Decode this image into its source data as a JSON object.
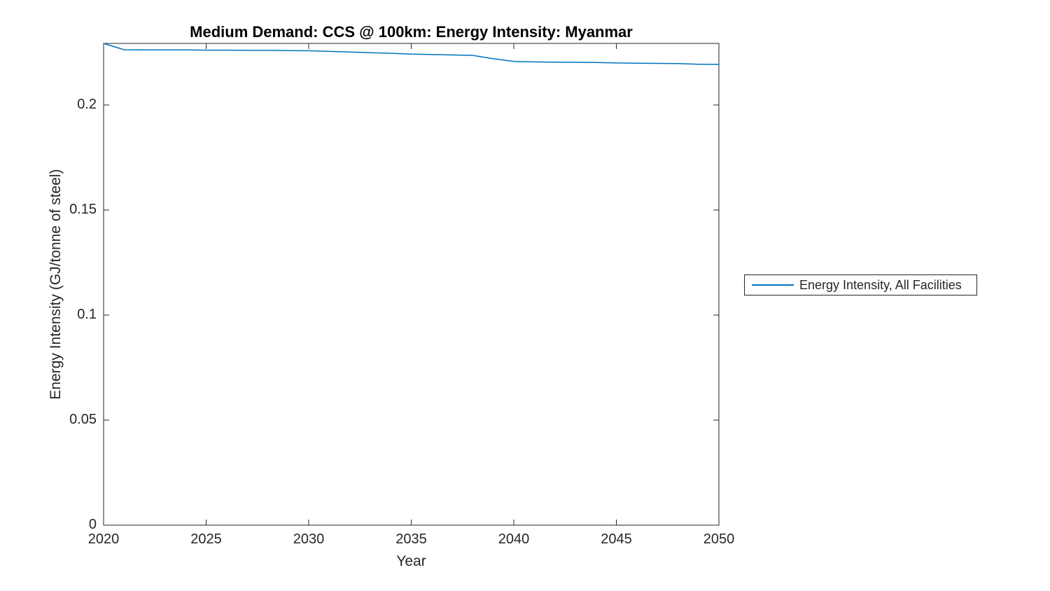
{
  "figure": {
    "background": "#ffffff"
  },
  "style": {
    "axis_color": "#262626",
    "title_color": "#000000",
    "line_color": "#0072BD"
  },
  "legend": {
    "label": "Energy Intensity, All Facilities"
  },
  "chart_data": {
    "type": "line",
    "title": "Medium Demand: CCS @ 100km: Energy Intensity: Myanmar",
    "xlabel": "Year",
    "ylabel": "Energy Intensity (GJ/tonne of steel)",
    "xlim": [
      2020,
      2050
    ],
    "ylim": [
      0,
      0.2293
    ],
    "xticks": [
      2020,
      2025,
      2030,
      2035,
      2040,
      2045,
      2050
    ],
    "yticks": [
      0,
      0.05,
      0.1,
      0.15,
      0.2
    ],
    "ytick_labels": [
      "0",
      "0.05",
      "0.1",
      "0.15",
      "0.2"
    ],
    "grid": false,
    "legend_position": "right-outside-center",
    "series": [
      {
        "name": "Energy Intensity, All Facilities",
        "color": "#0072BD",
        "x": [
          2020,
          2021,
          2022,
          2023,
          2024,
          2025,
          2026,
          2027,
          2028,
          2029,
          2030,
          2031,
          2032,
          2033,
          2034,
          2035,
          2036,
          2037,
          2038,
          2039,
          2040,
          2041,
          2042,
          2043,
          2044,
          2045,
          2046,
          2047,
          2048,
          2049,
          2050
        ],
        "y": [
          0.2293,
          0.2263,
          0.2262,
          0.2262,
          0.2262,
          0.2261,
          0.2261,
          0.226,
          0.226,
          0.2259,
          0.2258,
          0.2255,
          0.2252,
          0.2249,
          0.2246,
          0.2242,
          0.224,
          0.2238,
          0.2236,
          0.222,
          0.2207,
          0.2205,
          0.2204,
          0.2203,
          0.2202,
          0.22,
          0.2199,
          0.2198,
          0.2197,
          0.2194,
          0.2193
        ]
      }
    ]
  }
}
